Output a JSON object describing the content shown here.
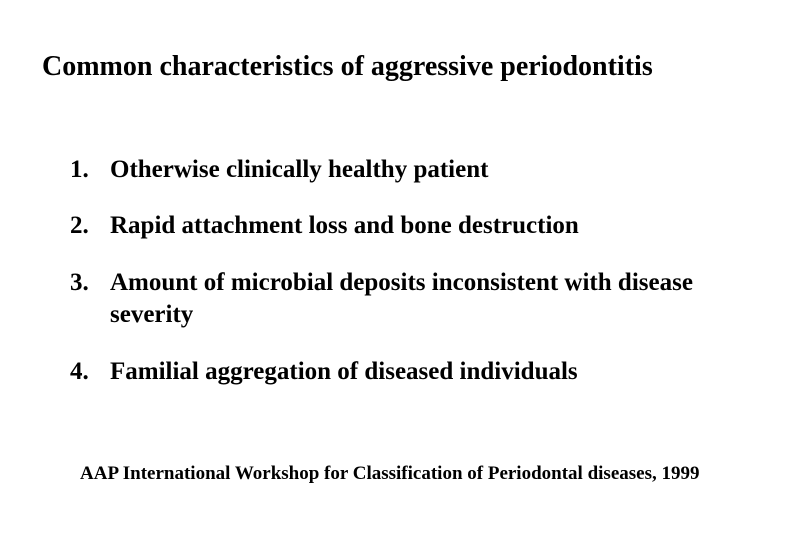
{
  "title": "Common characteristics of aggressive periodontitis",
  "items": [
    {
      "number": "1.",
      "text": "Otherwise clinically healthy patient"
    },
    {
      "number": "2.",
      "text": "Rapid attachment loss and bone destruction"
    },
    {
      "number": "3.",
      "text": "Amount of microbial deposits inconsistent with disease severity"
    },
    {
      "number": "4.",
      "text": "Familial aggregation of diseased individuals"
    }
  ],
  "citation": "AAP International Workshop for Classification of Periodontal diseases, 1999",
  "colors": {
    "background": "#ffffff",
    "text": "#000000"
  },
  "typography": {
    "font_family": "Times New Roman",
    "title_fontsize": 28,
    "item_fontsize": 25,
    "citation_fontsize": 19,
    "font_weight": "bold"
  }
}
